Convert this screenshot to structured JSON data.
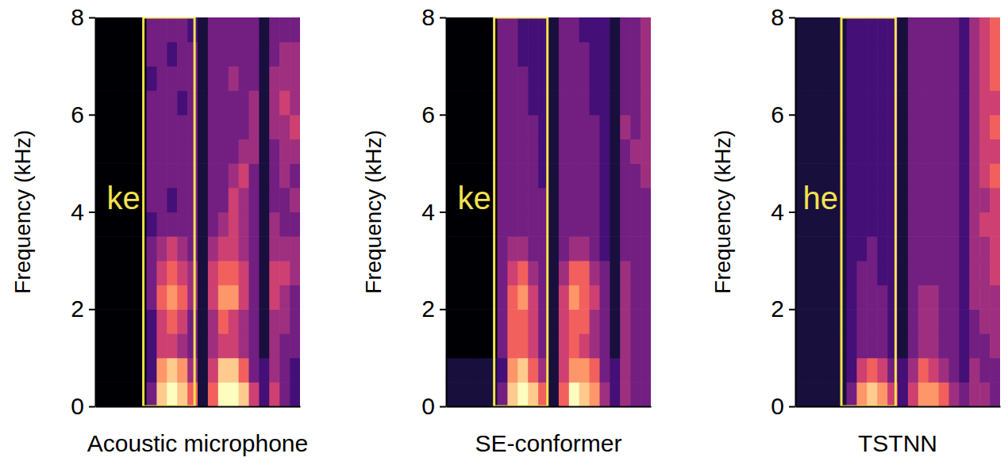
{
  "chart_data": [
    {
      "type": "heatmap",
      "x_label": "Acoustic microphone",
      "y_label": "Frequency (kHz)",
      "xlim": [
        0,
        20
      ],
      "ylim": [
        0,
        8
      ],
      "yticks": [
        0,
        2,
        4,
        6,
        8
      ],
      "tick_labels": "y",
      "xbins": [
        0,
        1,
        2,
        3,
        4,
        5,
        6,
        7,
        8,
        9,
        10,
        11,
        12,
        13,
        14,
        15,
        16,
        17,
        18,
        19,
        20
      ],
      "ybins": [
        0,
        0.5,
        1,
        1.5,
        2,
        2.5,
        3,
        3.5,
        4,
        4.5,
        5,
        5.5,
        6,
        6.5,
        7,
        7.5,
        8
      ],
      "zlim": [
        0,
        9
      ],
      "annotations": [
        {
          "text": "ke",
          "x0": 4.7,
          "x1": 9.7
        }
      ],
      "cells": [
        [
          0,
          0,
          0,
          0,
          0,
          3,
          8,
          9,
          8,
          6,
          1,
          6,
          9,
          9,
          8,
          5,
          2,
          5,
          3,
          2
        ],
        [
          0,
          0,
          0,
          0,
          0,
          2,
          7,
          8,
          7,
          4,
          1,
          5,
          8,
          8,
          6,
          3,
          2,
          4,
          3,
          2
        ],
        [
          0,
          0,
          0,
          0,
          0,
          2,
          5,
          5,
          4,
          3,
          1,
          4,
          5,
          5,
          4,
          3,
          1,
          4,
          3,
          3
        ],
        [
          0,
          0,
          0,
          0,
          0,
          2,
          5,
          6,
          5,
          3,
          1,
          4,
          6,
          5,
          4,
          3,
          1,
          4,
          4,
          3
        ],
        [
          0,
          0,
          0,
          0,
          0,
          3,
          6,
          7,
          6,
          4,
          1,
          5,
          7,
          7,
          5,
          3,
          1,
          5,
          4,
          3
        ],
        [
          0,
          0,
          0,
          0,
          0,
          3,
          5,
          6,
          5,
          4,
          1,
          5,
          6,
          6,
          5,
          3,
          1,
          5,
          5,
          4
        ],
        [
          0,
          0,
          0,
          0,
          0,
          3,
          4,
          5,
          4,
          3,
          1,
          4,
          5,
          5,
          4,
          3,
          1,
          4,
          4,
          4
        ],
        [
          0,
          0,
          0,
          0,
          0,
          2,
          3,
          3,
          3,
          3,
          1,
          3,
          4,
          5,
          4,
          3,
          1,
          4,
          3,
          3
        ],
        [
          0,
          0,
          0,
          0,
          0,
          3,
          3,
          2,
          3,
          3,
          1,
          3,
          3,
          5,
          4,
          3,
          1,
          3,
          3,
          4
        ],
        [
          0,
          0,
          0,
          0,
          0,
          3,
          3,
          3,
          3,
          3,
          1,
          3,
          3,
          4,
          5,
          3,
          1,
          3,
          4,
          3
        ],
        [
          0,
          0,
          0,
          0,
          0,
          3,
          3,
          3,
          3,
          3,
          1,
          3,
          3,
          3,
          4,
          4,
          1,
          3,
          4,
          4
        ],
        [
          0,
          0,
          0,
          0,
          0,
          3,
          3,
          3,
          3,
          3,
          1,
          3,
          3,
          3,
          3,
          4,
          1,
          4,
          4,
          5
        ],
        [
          0,
          0,
          0,
          0,
          0,
          3,
          3,
          3,
          2,
          3,
          1,
          3,
          3,
          3,
          3,
          4,
          1,
          4,
          5,
          4
        ],
        [
          0,
          0,
          0,
          0,
          0,
          2,
          3,
          3,
          3,
          3,
          1,
          3,
          3,
          4,
          3,
          3,
          1,
          4,
          4,
          4
        ],
        [
          0,
          0,
          0,
          0,
          0,
          3,
          3,
          2,
          3,
          3,
          1,
          3,
          3,
          3,
          3,
          3,
          1,
          3,
          4,
          4
        ],
        [
          0,
          0,
          0,
          0,
          0,
          3,
          3,
          3,
          3,
          2,
          1,
          3,
          3,
          3,
          3,
          3,
          1,
          3,
          3,
          3
        ]
      ]
    },
    {
      "type": "heatmap",
      "x_label": "SE-conformer",
      "y_label": "Frequency (kHz)",
      "xlim": [
        0,
        20
      ],
      "ylim": [
        0,
        8
      ],
      "yticks": [
        0,
        2,
        4,
        6,
        8
      ],
      "tick_labels": "y",
      "xbins": [
        0,
        1,
        2,
        3,
        4,
        5,
        6,
        7,
        8,
        9,
        10,
        11,
        12,
        13,
        14,
        15,
        16,
        17,
        18,
        19,
        20
      ],
      "ybins": [
        0,
        0.5,
        1,
        1.5,
        2,
        2.5,
        3,
        3.5,
        4,
        4.5,
        5,
        5.5,
        6,
        6.5,
        7,
        7.5,
        8
      ],
      "zlim": [
        0,
        9
      ],
      "annotations": [
        {
          "text": "ke",
          "x0": 4.7,
          "x1": 9.9
        }
      ],
      "cells": [
        [
          1,
          1,
          1,
          1,
          1,
          3,
          8,
          9,
          8,
          6,
          1,
          6,
          9,
          8,
          7,
          4,
          2,
          4,
          3,
          3
        ],
        [
          1,
          1,
          1,
          1,
          1,
          2,
          7,
          8,
          6,
          4,
          1,
          5,
          7,
          7,
          6,
          3,
          2,
          4,
          3,
          3
        ],
        [
          0,
          0,
          0,
          0,
          0,
          3,
          6,
          6,
          5,
          3,
          1,
          5,
          6,
          5,
          4,
          3,
          1,
          4,
          3,
          3
        ],
        [
          0,
          0,
          0,
          0,
          0,
          3,
          6,
          6,
          5,
          3,
          1,
          5,
          6,
          6,
          4,
          3,
          1,
          4,
          3,
          3
        ],
        [
          0,
          0,
          0,
          0,
          0,
          3,
          6,
          7,
          5,
          3,
          1,
          5,
          7,
          6,
          5,
          3,
          1,
          4,
          3,
          3
        ],
        [
          0,
          0,
          0,
          0,
          0,
          3,
          5,
          6,
          4,
          3,
          1,
          4,
          6,
          6,
          4,
          3,
          1,
          4,
          3,
          3
        ],
        [
          0,
          0,
          0,
          0,
          0,
          3,
          4,
          4,
          3,
          3,
          1,
          3,
          4,
          4,
          3,
          2,
          1,
          3,
          3,
          3
        ],
        [
          0,
          0,
          0,
          0,
          0,
          3,
          3,
          3,
          3,
          3,
          1,
          3,
          3,
          3,
          3,
          2,
          1,
          3,
          3,
          3
        ],
        [
          0,
          0,
          0,
          0,
          0,
          3,
          3,
          3,
          3,
          3,
          1,
          3,
          3,
          3,
          3,
          2,
          1,
          3,
          3,
          3
        ],
        [
          0,
          0,
          0,
          0,
          0,
          3,
          3,
          3,
          3,
          2,
          1,
          3,
          3,
          3,
          3,
          2,
          1,
          3,
          3,
          4
        ],
        [
          0,
          0,
          0,
          0,
          0,
          3,
          3,
          3,
          3,
          2,
          1,
          3,
          3,
          3,
          3,
          2,
          1,
          3,
          4,
          4
        ],
        [
          0,
          0,
          0,
          0,
          0,
          3,
          3,
          3,
          3,
          2,
          1,
          3,
          3,
          3,
          3,
          2,
          1,
          4,
          3,
          4
        ],
        [
          0,
          0,
          0,
          0,
          0,
          3,
          3,
          3,
          2,
          2,
          1,
          3,
          3,
          3,
          2,
          2,
          1,
          3,
          3,
          4
        ],
        [
          0,
          0,
          0,
          0,
          0,
          3,
          3,
          3,
          2,
          2,
          1,
          3,
          3,
          3,
          2,
          2,
          1,
          3,
          3,
          4
        ],
        [
          0,
          0,
          0,
          0,
          0,
          3,
          3,
          2,
          2,
          2,
          1,
          3,
          3,
          3,
          2,
          2,
          1,
          3,
          3,
          4
        ],
        [
          0,
          0,
          0,
          0,
          0,
          3,
          3,
          2,
          2,
          2,
          1,
          3,
          3,
          2,
          2,
          2,
          1,
          3,
          3,
          4
        ]
      ]
    },
    {
      "type": "heatmap",
      "x_label": "TSTNN",
      "y_label": "Frequency (kHz)",
      "xlim": [
        0,
        20
      ],
      "ylim": [
        0,
        8
      ],
      "yticks": [
        0,
        2,
        4,
        6,
        8
      ],
      "tick_labels": "y",
      "xbins": [
        0,
        1,
        2,
        3,
        4,
        5,
        6,
        7,
        8,
        9,
        10,
        11,
        12,
        13,
        14,
        15,
        16,
        17,
        18,
        19,
        20
      ],
      "ybins": [
        0,
        0.5,
        1,
        1.5,
        2,
        2.5,
        3,
        3.5,
        4,
        4.5,
        5,
        5.5,
        6,
        6.5,
        7,
        7.5,
        8
      ],
      "zlim": [
        0,
        9
      ],
      "annotations": [
        {
          "text": "he",
          "x0": 4.5,
          "x1": 9.8
        }
      ],
      "cells": [
        [
          1,
          1,
          1,
          1,
          1,
          3,
          7,
          8,
          7,
          5,
          2,
          5,
          7,
          7,
          6,
          4,
          3,
          4,
          4,
          3
        ],
        [
          1,
          1,
          1,
          1,
          1,
          2,
          5,
          6,
          5,
          3,
          2,
          4,
          6,
          5,
          4,
          3,
          2,
          4,
          3,
          3
        ],
        [
          1,
          1,
          1,
          1,
          1,
          2,
          3,
          3,
          3,
          2,
          1,
          3,
          4,
          4,
          3,
          3,
          2,
          3,
          3,
          4
        ],
        [
          1,
          1,
          1,
          1,
          1,
          2,
          3,
          3,
          3,
          2,
          1,
          3,
          4,
          4,
          3,
          3,
          2,
          3,
          4,
          4
        ],
        [
          1,
          1,
          1,
          1,
          1,
          2,
          3,
          3,
          3,
          2,
          1,
          3,
          4,
          4,
          3,
          3,
          2,
          4,
          4,
          4
        ],
        [
          1,
          1,
          1,
          1,
          1,
          2,
          3,
          3,
          2,
          2,
          1,
          3,
          3,
          3,
          3,
          3,
          2,
          4,
          4,
          5
        ],
        [
          1,
          1,
          1,
          1,
          1,
          2,
          2,
          3,
          2,
          2,
          1,
          3,
          3,
          3,
          3,
          3,
          2,
          4,
          4,
          5
        ],
        [
          1,
          1,
          1,
          1,
          1,
          2,
          2,
          2,
          2,
          2,
          1,
          3,
          3,
          3,
          3,
          3,
          2,
          4,
          5,
          5
        ],
        [
          1,
          1,
          1,
          1,
          1,
          2,
          2,
          2,
          2,
          2,
          1,
          3,
          3,
          3,
          3,
          3,
          2,
          4,
          4,
          5
        ],
        [
          1,
          1,
          1,
          1,
          1,
          2,
          2,
          2,
          2,
          2,
          1,
          3,
          3,
          3,
          3,
          3,
          2,
          4,
          5,
          6
        ],
        [
          1,
          1,
          1,
          1,
          1,
          2,
          2,
          2,
          2,
          2,
          1,
          3,
          3,
          3,
          3,
          3,
          2,
          4,
          5,
          5
        ],
        [
          1,
          1,
          1,
          1,
          1,
          2,
          2,
          2,
          2,
          2,
          1,
          3,
          3,
          3,
          3,
          3,
          2,
          4,
          5,
          6
        ],
        [
          1,
          1,
          1,
          1,
          1,
          2,
          2,
          2,
          2,
          2,
          1,
          3,
          3,
          3,
          3,
          3,
          2,
          4,
          5,
          5
        ],
        [
          1,
          1,
          1,
          1,
          1,
          2,
          2,
          2,
          2,
          2,
          1,
          3,
          3,
          3,
          3,
          3,
          2,
          4,
          5,
          6
        ],
        [
          1,
          1,
          1,
          1,
          1,
          2,
          2,
          2,
          2,
          2,
          1,
          3,
          3,
          3,
          3,
          3,
          2,
          4,
          5,
          6
        ],
        [
          1,
          1,
          1,
          1,
          1,
          2,
          2,
          2,
          2,
          2,
          1,
          3,
          3,
          3,
          3,
          3,
          2,
          4,
          5,
          6
        ]
      ]
    }
  ]
}
